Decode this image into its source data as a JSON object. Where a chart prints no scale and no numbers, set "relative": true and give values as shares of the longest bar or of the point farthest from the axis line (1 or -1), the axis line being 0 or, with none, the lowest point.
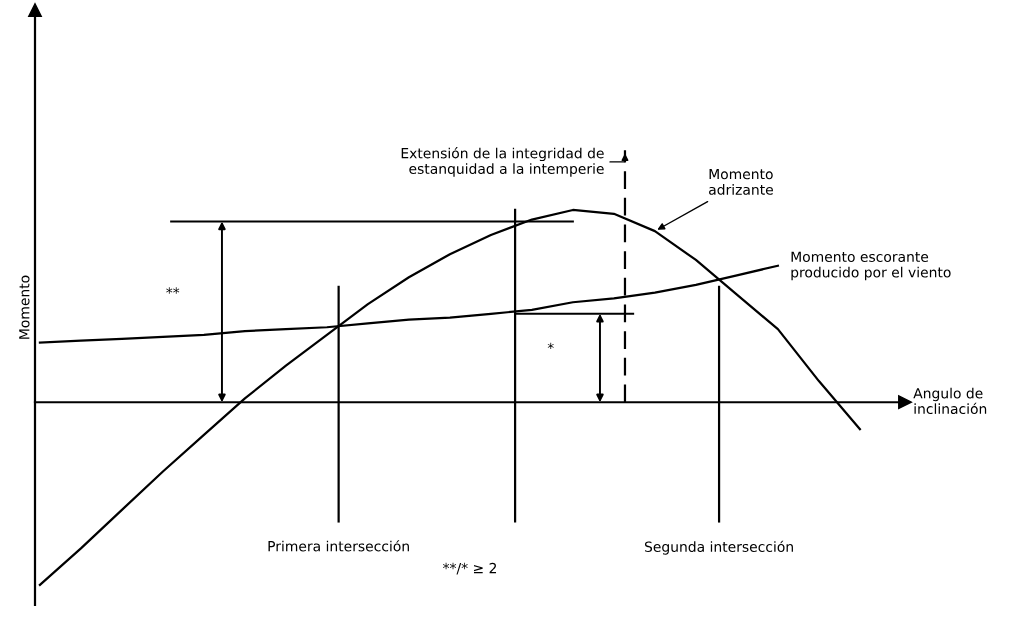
{
  "chart_data": {
    "type": "line",
    "relative": true,
    "xlabel": "Angulo de\ninclinación",
    "ylabel": "Momento",
    "categories": [
      null,
      null,
      null,
      null,
      null,
      null,
      null,
      null,
      null,
      null,
      null,
      null,
      null,
      null,
      null,
      null,
      null,
      null,
      null,
      null,
      null
    ],
    "series": [
      {
        "name": "Momento\nadrizante",
        "color": "#000000",
        "values": [
          -0.95,
          -0.76,
          -0.56,
          -0.36,
          -0.17,
          0.02,
          0.19,
          0.35,
          0.51,
          0.65,
          0.77,
          0.87,
          0.95,
          1.0,
          0.98,
          0.89,
          0.74,
          0.56,
          0.38,
          0.11,
          -0.14
        ]
      },
      {
        "name": "Momento escorante\nproducido por el viento",
        "color": "#000000",
        "values": [
          0.31,
          0.32,
          0.33,
          0.34,
          0.35,
          0.37,
          0.38,
          0.39,
          0.41,
          0.43,
          0.44,
          0.46,
          0.48,
          0.52,
          0.54,
          0.57,
          0.61,
          0.66,
          0.71,
          null,
          null
        ]
      }
    ],
    "annotations": [
      "Extensión de la integridad de\nestanquidad a la intemperie",
      "**",
      "*",
      "Primera intersección",
      "Segunda intersección",
      "**/* ≥ 2"
    ],
    "ref_lines": [
      {
        "axis": "y",
        "value": 0.94
      },
      {
        "axis": "y",
        "value": 0.46
      }
    ],
    "marker": "none",
    "line_style": "solid"
  }
}
